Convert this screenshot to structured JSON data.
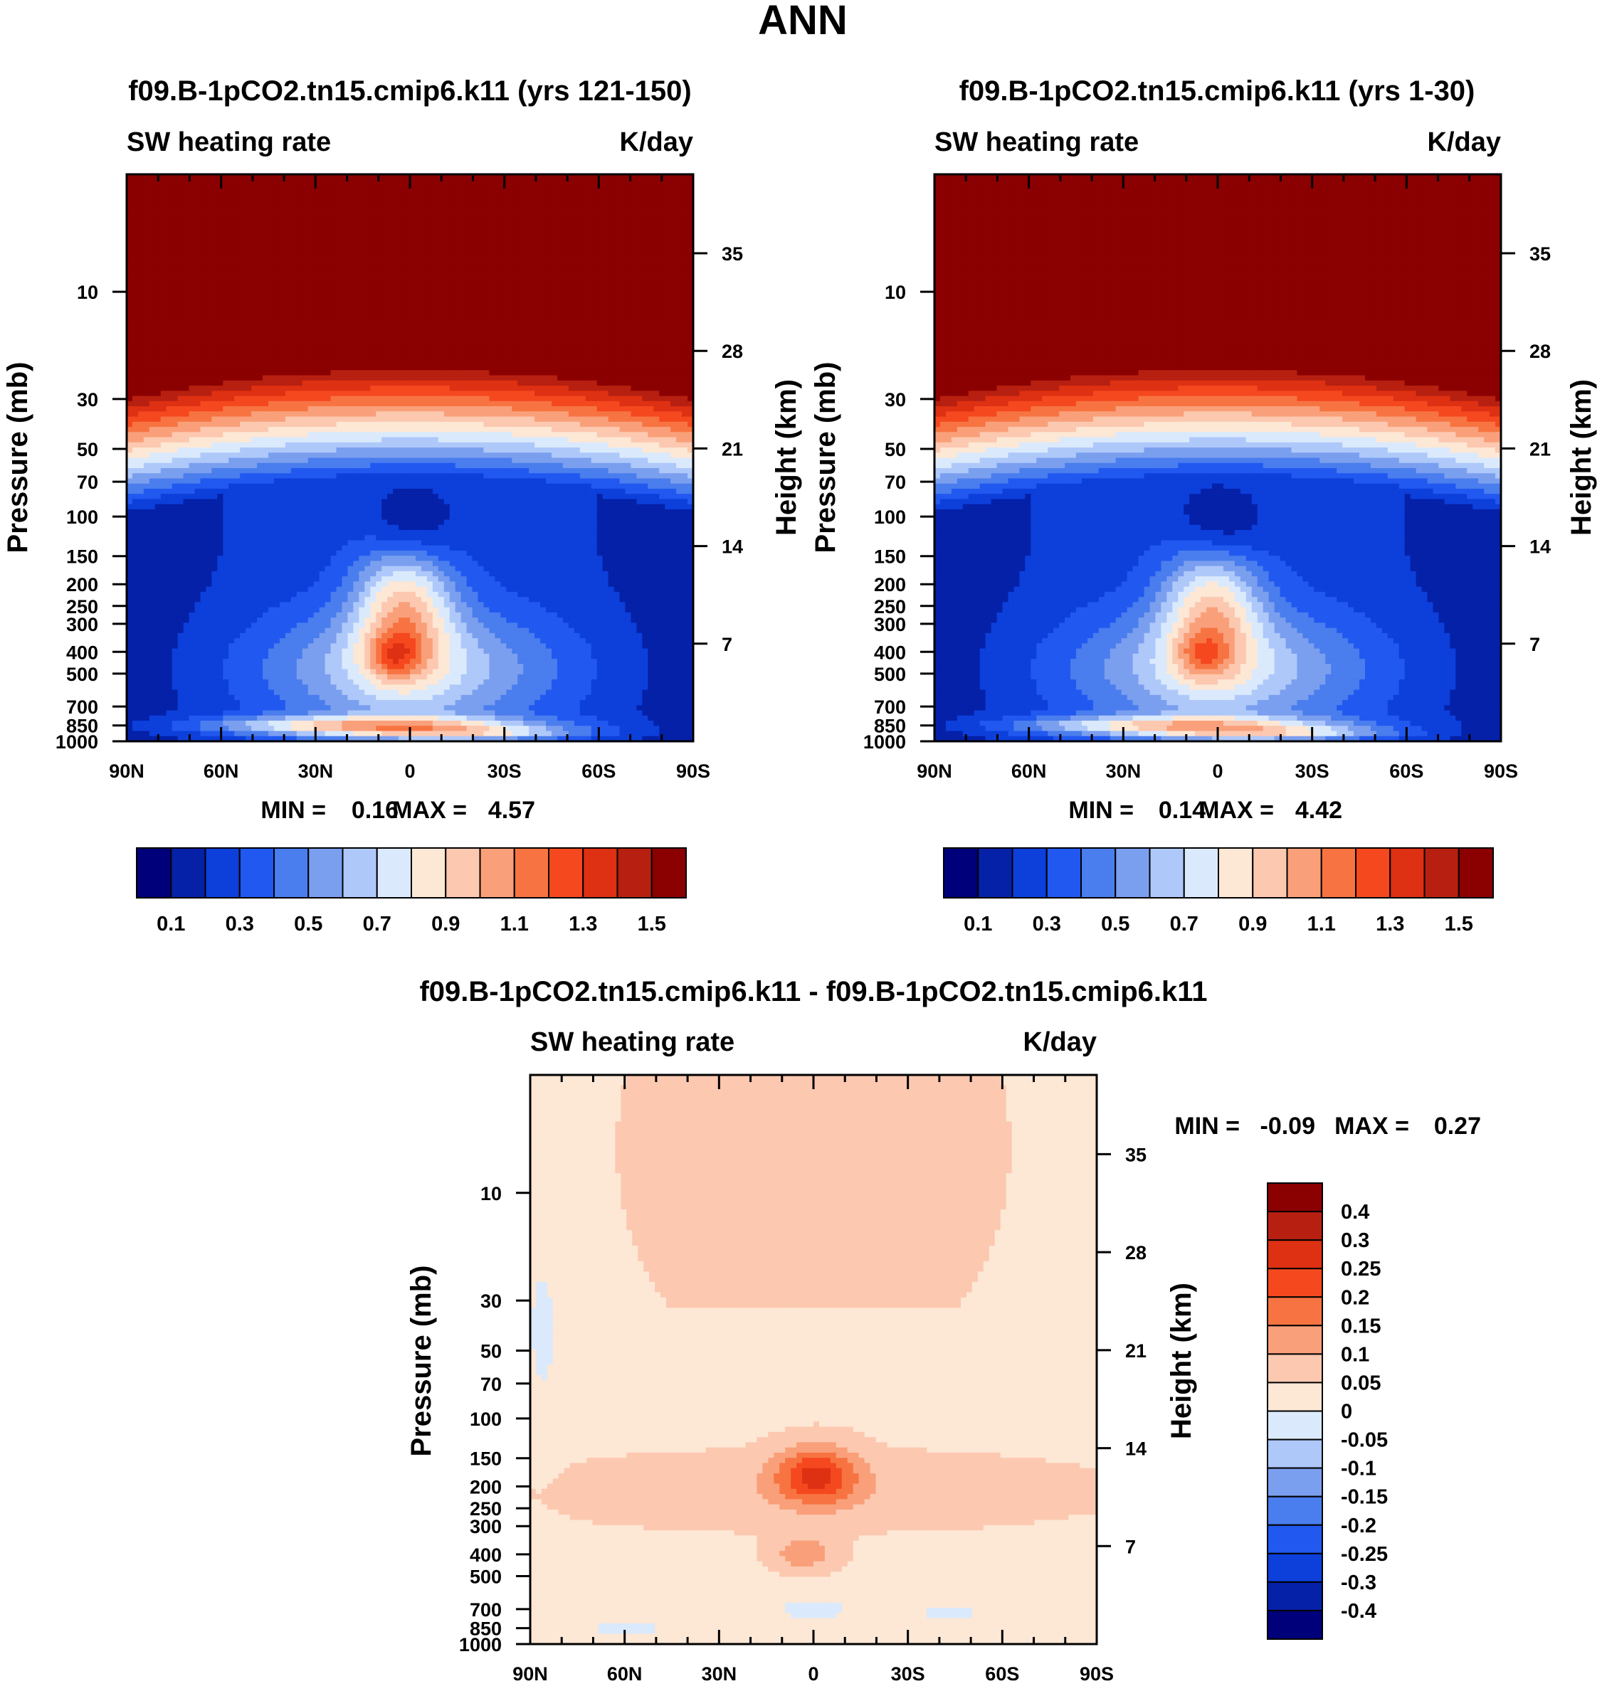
{
  "figure": {
    "title": "ANN",
    "variable": "SW heating rate",
    "units": "K/day",
    "ylabel_left": "Pressure (mb)",
    "ylabel_right": "Height (km)",
    "lat_ticks": [
      "90N",
      "60N",
      "30N",
      "0",
      "30S",
      "60S",
      "90S"
    ],
    "pressure_ticks": [
      "10",
      "30",
      "50",
      "70",
      "100",
      "150",
      "200",
      "250",
      "300",
      "400",
      "500",
      "700",
      "850",
      "1000"
    ],
    "height_ticks": [
      "35",
      "28",
      "21",
      "14",
      "7"
    ]
  },
  "chart_data": [
    {
      "type": "heatmap",
      "title": "f09.B-1pCO2.tn15.cmip6.k11 (yrs 121-150)",
      "left_string": "SW heating rate",
      "right_string": "K/day",
      "min_label": "MIN =",
      "min": "0.16",
      "max_label": "MAX =",
      "max": "4.57",
      "xlim": [
        90,
        -90
      ],
      "ylim_hpa": [
        1000,
        3
      ],
      "colorbar": {
        "levels": [
          0.1,
          0.2,
          0.3,
          0.4,
          0.5,
          0.6,
          0.7,
          0.8,
          0.9,
          1.0,
          1.1,
          1.2,
          1.3,
          1.4,
          1.5
        ],
        "tick_labels": [
          "0.1",
          "0.3",
          "0.5",
          "0.7",
          "0.9",
          "1.1",
          "1.3",
          "1.5"
        ]
      }
    },
    {
      "type": "heatmap",
      "title": "f09.B-1pCO2.tn15.cmip6.k11 (yrs 1-30)",
      "left_string": "SW heating rate",
      "right_string": "K/day",
      "min_label": "MIN =",
      "min": "0.14",
      "max_label": "MAX =",
      "max": "4.42",
      "xlim": [
        90,
        -90
      ],
      "ylim_hpa": [
        1000,
        3
      ],
      "colorbar": {
        "levels": [
          0.1,
          0.2,
          0.3,
          0.4,
          0.5,
          0.6,
          0.7,
          0.8,
          0.9,
          1.0,
          1.1,
          1.2,
          1.3,
          1.4,
          1.5
        ],
        "tick_labels": [
          "0.1",
          "0.3",
          "0.5",
          "0.7",
          "0.9",
          "1.1",
          "1.3",
          "1.5"
        ]
      }
    },
    {
      "type": "heatmap",
      "title": "f09.B-1pCO2.tn15.cmip6.k11 - f09.B-1pCO2.tn15.cmip6.k11",
      "left_string": "SW heating rate",
      "right_string": "K/day",
      "min_label": "MIN =",
      "min": "-0.09",
      "max_label": "MAX =",
      "max": "0.27",
      "xlim": [
        90,
        -90
      ],
      "ylim_hpa": [
        1000,
        3
      ],
      "colorbar": {
        "levels": [
          -0.4,
          -0.3,
          -0.25,
          -0.2,
          -0.15,
          -0.1,
          -0.05,
          0,
          0.05,
          0.1,
          0.15,
          0.2,
          0.25,
          0.3,
          0.4
        ],
        "tick_labels": [
          "0.4",
          "0.3",
          "0.25",
          "0.2",
          "0.15",
          "0.1",
          "0.05",
          "0",
          "-0.05",
          "-0.1",
          "-0.15",
          "-0.2",
          "-0.25",
          "-0.3",
          "-0.4"
        ]
      }
    }
  ],
  "colors": {
    "seq16": [
      "#00007a",
      "#0421a8",
      "#0d3fdb",
      "#2158f0",
      "#4a7ded",
      "#7b9fef",
      "#aec8fa",
      "#daeafc",
      "#fde7d5",
      "#fcc8b0",
      "#f9a07a",
      "#f77442",
      "#f5481f",
      "#de3012",
      "#b72010",
      "#8b0000"
    ],
    "diff16": [
      "#00007a",
      "#0421a8",
      "#0d3fdb",
      "#2158f0",
      "#4a7ded",
      "#7b9fef",
      "#aec8fa",
      "#daeafc",
      "#fde7d5",
      "#fcc8b0",
      "#f9a07a",
      "#f77442",
      "#f5481f",
      "#de3012",
      "#b72010",
      "#8b0000"
    ]
  }
}
